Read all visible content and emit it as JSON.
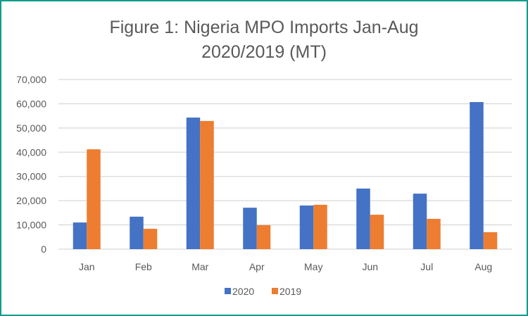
{
  "chart_data": {
    "type": "bar",
    "title_line1": "Figure 1: Nigeria MPO Imports Jan-Aug",
    "title_line2": "2020/2019 (MT)",
    "xlabel": "",
    "ylabel": "",
    "categories": [
      "Jan",
      "Feb",
      "Mar",
      "Apr",
      "May",
      "Jun",
      "Jul",
      "Aug"
    ],
    "series": [
      {
        "name": "2020",
        "color": "#4472c4",
        "values": [
          11000,
          13400,
          54300,
          17100,
          18000,
          25000,
          22900,
          60700
        ]
      },
      {
        "name": "2019",
        "color": "#ed7d31",
        "values": [
          41200,
          8400,
          52900,
          9900,
          18300,
          14200,
          12500,
          7000
        ]
      }
    ],
    "ylim": [
      0,
      70000
    ],
    "yticks": [
      0,
      10000,
      20000,
      30000,
      40000,
      50000,
      60000,
      70000
    ],
    "ytick_labels": [
      "0",
      "10,000",
      "20,000",
      "30,000",
      "40,000",
      "50,000",
      "60,000",
      "70,000"
    ],
    "grid": true,
    "gridline_color": "#d9d9d9",
    "legend_position": "bottom",
    "frame_color": "#0f9d8c"
  }
}
